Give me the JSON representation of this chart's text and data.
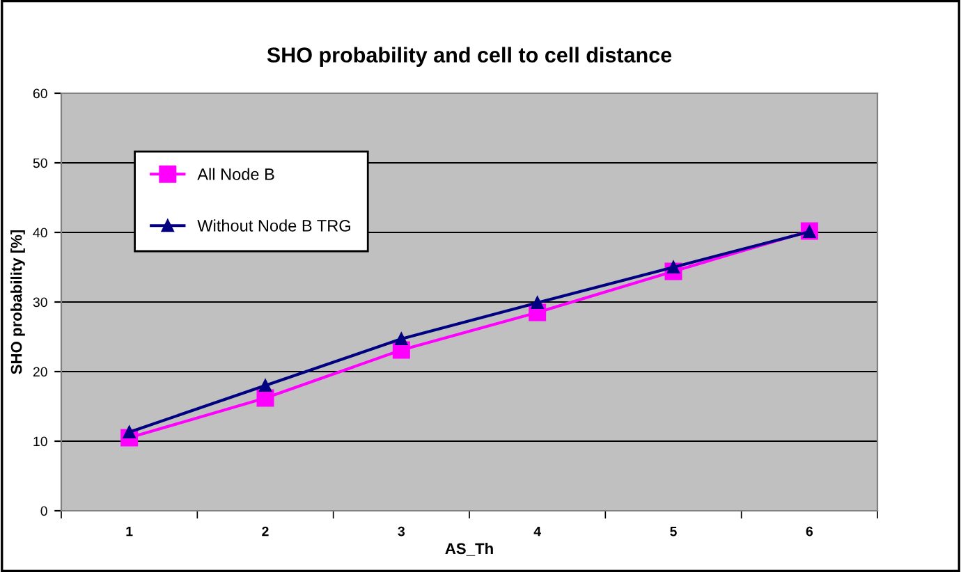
{
  "chart_data": {
    "type": "line",
    "title": "SHO probability and cell to cell distance",
    "xlabel": "AS_Th",
    "ylabel": "SHO probability [%]",
    "categories": [
      "1",
      "2",
      "3",
      "4",
      "5",
      "6"
    ],
    "series": [
      {
        "name": "All Node B",
        "color": "#ff00ff",
        "marker": "square",
        "values": [
          10.5,
          16.2,
          23.1,
          28.5,
          34.4,
          40.2
        ]
      },
      {
        "name": "Without Node B TRG",
        "color": "#000080",
        "marker": "triangle",
        "values": [
          11.3,
          18.0,
          24.7,
          29.9,
          35.0,
          40.1
        ]
      }
    ],
    "ylim": [
      0,
      60
    ],
    "yticks": [
      0,
      10,
      20,
      30,
      40,
      50,
      60
    ],
    "grid": "y",
    "legend": "top left",
    "line_style": "solid"
  }
}
